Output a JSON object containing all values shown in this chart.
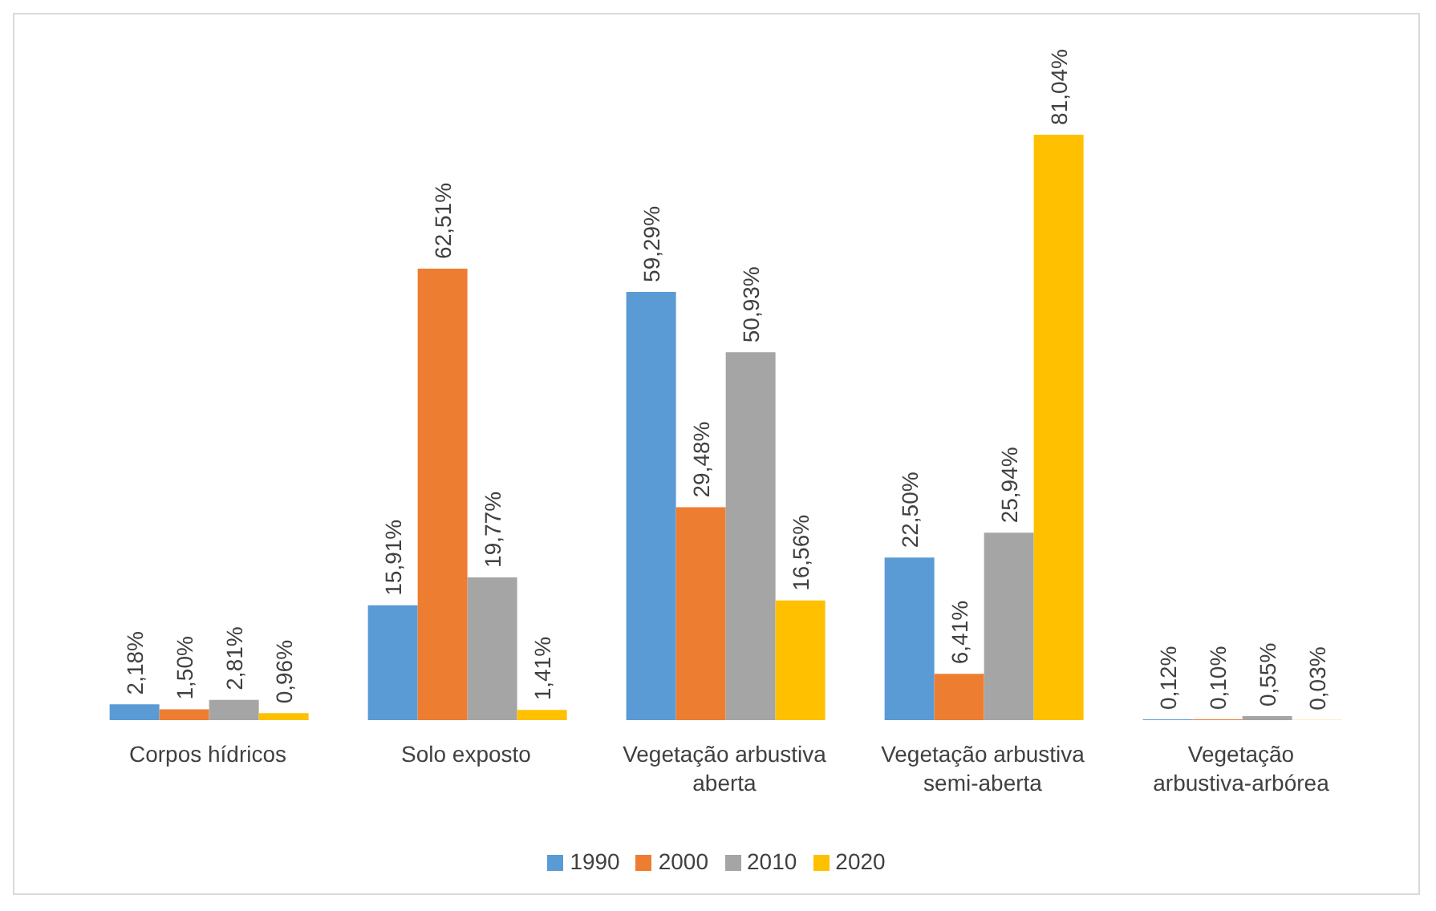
{
  "chart_data": {
    "type": "bar",
    "categories": [
      "Corpos hídricos",
      "Solo exposto",
      "Vegetação arbustiva aberta",
      "Vegetação arbustiva semi-aberta",
      "Vegetação arbustiva-arbórea"
    ],
    "series": [
      {
        "name": "1990",
        "color": "#5b9bd5",
        "values": [
          2.18,
          15.91,
          59.29,
          22.5,
          0.12
        ],
        "value_labels": [
          "2,18%",
          "15,91%",
          "59,29%",
          "22,50%",
          "0,12%"
        ]
      },
      {
        "name": "2000",
        "color": "#ed7d31",
        "values": [
          1.5,
          62.51,
          29.48,
          6.41,
          0.1
        ],
        "value_labels": [
          "1,50%",
          "62,51%",
          "29,48%",
          "6,41%",
          "0,10%"
        ]
      },
      {
        "name": "2010",
        "color": "#a5a5a5",
        "values": [
          2.81,
          19.77,
          50.93,
          25.94,
          0.55
        ],
        "value_labels": [
          "2,81%",
          "19,77%",
          "50,93%",
          "25,94%",
          "0,55%"
        ]
      },
      {
        "name": "2020",
        "color": "#ffc000",
        "values": [
          0.96,
          1.41,
          16.56,
          81.04,
          0.03
        ],
        "value_labels": [
          "0,96%",
          "1,41%",
          "16,56%",
          "81,04%",
          "0,03%"
        ]
      }
    ],
    "legend": "bottom",
    "grid": false
  }
}
